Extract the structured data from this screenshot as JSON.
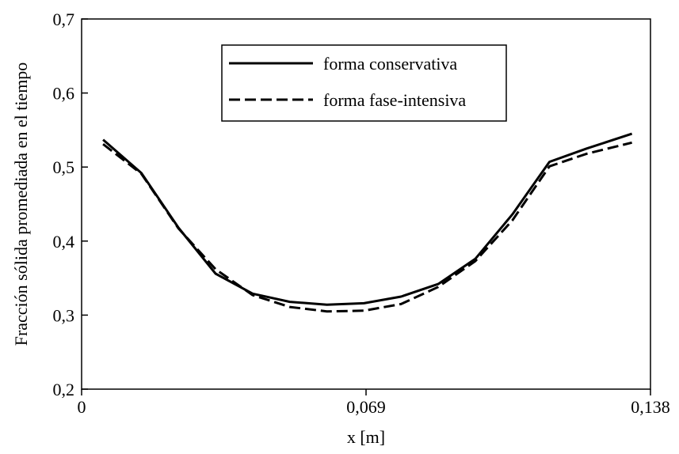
{
  "chart_data": {
    "type": "line",
    "xlabel": "x [m]",
    "ylabel": "Fracción sólida promediada en el tiempo",
    "xlim": [
      0,
      0.138
    ],
    "ylim": [
      0.2,
      0.7
    ],
    "x_ticks": [
      {
        "value": 0,
        "label": "0"
      },
      {
        "value": 0.069,
        "label": "0,069"
      },
      {
        "value": 0.138,
        "label": "0,138"
      }
    ],
    "y_ticks": [
      {
        "value": 0.2,
        "label": "0,2"
      },
      {
        "value": 0.3,
        "label": "0,3"
      },
      {
        "value": 0.4,
        "label": "0,4"
      },
      {
        "value": 0.5,
        "label": "0,5"
      },
      {
        "value": 0.6,
        "label": "0,6"
      },
      {
        "value": 0.7,
        "label": "0,7"
      }
    ],
    "grid": false,
    "legend_position": "top-center",
    "series": [
      {
        "name": "forma conservativa",
        "style": "solid",
        "color": "#000000",
        "x": [
          0.0052,
          0.0145,
          0.0235,
          0.0325,
          0.0415,
          0.0505,
          0.0595,
          0.0685,
          0.0775,
          0.0865,
          0.0955,
          0.1045,
          0.1135,
          0.1225,
          0.1335
        ],
        "y": [
          0.537,
          0.492,
          0.418,
          0.356,
          0.329,
          0.318,
          0.314,
          0.316,
          0.325,
          0.342,
          0.376,
          0.436,
          0.507,
          0.525,
          0.545
        ]
      },
      {
        "name": "forma fase-intensiva",
        "style": "dashed",
        "color": "#000000",
        "x": [
          0.0052,
          0.0145,
          0.0235,
          0.0325,
          0.0415,
          0.0505,
          0.0595,
          0.0685,
          0.0775,
          0.0865,
          0.0955,
          0.1045,
          0.1135,
          0.1225,
          0.1335
        ],
        "y": [
          0.531,
          0.491,
          0.417,
          0.362,
          0.327,
          0.311,
          0.305,
          0.306,
          0.315,
          0.338,
          0.373,
          0.428,
          0.501,
          0.518,
          0.533
        ]
      }
    ]
  }
}
